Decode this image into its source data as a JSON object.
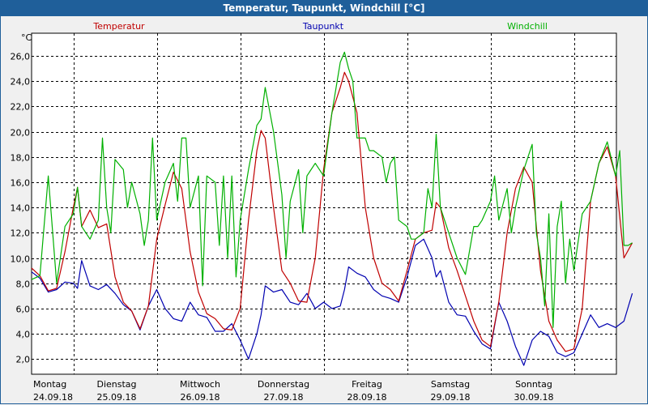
{
  "window": {
    "title": "Temperatur, Taupunkt, Windchill [°C]"
  },
  "chart_data": {
    "type": "line",
    "title": "Temperatur, Taupunkt, Windchill [°C]",
    "ylabel": "°C",
    "ylim": [
      0.8,
      27.8
    ],
    "xlim": [
      0,
      7.0
    ],
    "yticks": [
      "2,0",
      "4,0",
      "6,0",
      "8,0",
      "10,0",
      "12,0",
      "14,0",
      "16,0",
      "18,0",
      "20,0",
      "22,0",
      "24,0",
      "26,0"
    ],
    "ytick_values": [
      2,
      4,
      6,
      8,
      10,
      12,
      14,
      16,
      18,
      20,
      22,
      24,
      26
    ],
    "xticks": [
      {
        "day": "Montag",
        "date": "24.09.18",
        "pos": 0.0
      },
      {
        "day": "Dienstag",
        "date": "25.09.18",
        "pos": 1.0
      },
      {
        "day": "Mittwoch",
        "date": "26.09.18",
        "pos": 2.0
      },
      {
        "day": "Donnerstag",
        "date": "27.09.18",
        "pos": 3.0
      },
      {
        "day": "Freitag",
        "date": "28.09.18",
        "pos": 4.0
      },
      {
        "day": "Samstag",
        "date": "29.09.18",
        "pos": 5.0
      },
      {
        "day": "Sonntag",
        "date": "30.09.18",
        "pos": 6.0
      }
    ],
    "grid": true,
    "series": [
      {
        "name": "Temperatur",
        "color": "#c00000",
        "points": [
          [
            0.0,
            9.2
          ],
          [
            0.1,
            8.6
          ],
          [
            0.2,
            7.4
          ],
          [
            0.3,
            7.6
          ],
          [
            0.4,
            10.5
          ],
          [
            0.5,
            14.0
          ],
          [
            0.55,
            15.6
          ],
          [
            0.6,
            12.5
          ],
          [
            0.7,
            13.8
          ],
          [
            0.8,
            12.4
          ],
          [
            0.9,
            12.7
          ],
          [
            1.0,
            8.5
          ],
          [
            1.1,
            6.5
          ],
          [
            1.2,
            5.8
          ],
          [
            1.3,
            4.4
          ],
          [
            1.4,
            6.2
          ],
          [
            1.5,
            11.5
          ],
          [
            1.6,
            14.2
          ],
          [
            1.7,
            16.8
          ],
          [
            1.8,
            15.5
          ],
          [
            1.9,
            10.5
          ],
          [
            2.0,
            7.3
          ],
          [
            2.1,
            5.6
          ],
          [
            2.2,
            5.2
          ],
          [
            2.3,
            4.4
          ],
          [
            2.4,
            4.3
          ],
          [
            2.5,
            6.0
          ],
          [
            2.6,
            13.0
          ],
          [
            2.7,
            18.5
          ],
          [
            2.75,
            20.1
          ],
          [
            2.8,
            19.5
          ],
          [
            2.9,
            14.0
          ],
          [
            3.0,
            9.0
          ],
          [
            3.1,
            8.0
          ],
          [
            3.2,
            6.6
          ],
          [
            3.3,
            6.5
          ],
          [
            3.4,
            10.0
          ],
          [
            3.5,
            17.0
          ],
          [
            3.6,
            21.5
          ],
          [
            3.7,
            23.5
          ],
          [
            3.75,
            24.7
          ],
          [
            3.8,
            24.0
          ],
          [
            3.9,
            21.5
          ],
          [
            4.0,
            14.0
          ],
          [
            4.1,
            10.0
          ],
          [
            4.2,
            8.0
          ],
          [
            4.3,
            7.5
          ],
          [
            4.4,
            6.6
          ],
          [
            4.5,
            9.0
          ],
          [
            4.6,
            11.5
          ],
          [
            4.7,
            12.0
          ],
          [
            4.8,
            12.2
          ],
          [
            4.85,
            14.4
          ],
          [
            4.9,
            14.0
          ],
          [
            5.0,
            10.8
          ],
          [
            5.1,
            9.0
          ],
          [
            5.2,
            7.0
          ],
          [
            5.3,
            5.0
          ],
          [
            5.4,
            3.5
          ],
          [
            5.5,
            3.0
          ],
          [
            5.6,
            6.5
          ],
          [
            5.7,
            12.0
          ],
          [
            5.8,
            15.5
          ],
          [
            5.9,
            17.2
          ],
          [
            6.0,
            16.0
          ],
          [
            6.1,
            9.0
          ],
          [
            6.2,
            5.0
          ],
          [
            6.3,
            3.5
          ],
          [
            6.4,
            2.6
          ],
          [
            6.5,
            2.8
          ],
          [
            6.6,
            6.0
          ],
          [
            6.7,
            14.5
          ],
          [
            6.8,
            17.5
          ],
          [
            6.9,
            18.8
          ],
          [
            7.0,
            16.5
          ],
          [
            7.1,
            10.0
          ],
          [
            7.2,
            11.2
          ]
        ]
      },
      {
        "name": "Taupunkt",
        "color": "#0000b0",
        "points": [
          [
            0.0,
            8.9
          ],
          [
            0.1,
            8.4
          ],
          [
            0.2,
            7.3
          ],
          [
            0.3,
            7.5
          ],
          [
            0.4,
            8.1
          ],
          [
            0.5,
            8.0
          ],
          [
            0.55,
            7.6
          ],
          [
            0.6,
            9.8
          ],
          [
            0.7,
            7.8
          ],
          [
            0.8,
            7.5
          ],
          [
            0.9,
            7.9
          ],
          [
            1.0,
            7.2
          ],
          [
            1.1,
            6.3
          ],
          [
            1.2,
            5.8
          ],
          [
            1.3,
            4.3
          ],
          [
            1.4,
            6.2
          ],
          [
            1.5,
            7.5
          ],
          [
            1.6,
            6.0
          ],
          [
            1.7,
            5.2
          ],
          [
            1.8,
            5.0
          ],
          [
            1.9,
            6.5
          ],
          [
            2.0,
            5.5
          ],
          [
            2.1,
            5.3
          ],
          [
            2.2,
            4.2
          ],
          [
            2.3,
            4.2
          ],
          [
            2.4,
            4.8
          ],
          [
            2.5,
            3.5
          ],
          [
            2.6,
            2.0
          ],
          [
            2.7,
            4.0
          ],
          [
            2.75,
            5.5
          ],
          [
            2.8,
            7.8
          ],
          [
            2.9,
            7.3
          ],
          [
            3.0,
            7.5
          ],
          [
            3.1,
            6.5
          ],
          [
            3.2,
            6.3
          ],
          [
            3.3,
            7.2
          ],
          [
            3.4,
            6.0
          ],
          [
            3.5,
            6.5
          ],
          [
            3.6,
            6.0
          ],
          [
            3.7,
            6.2
          ],
          [
            3.75,
            7.5
          ],
          [
            3.8,
            9.3
          ],
          [
            3.9,
            8.8
          ],
          [
            4.0,
            8.5
          ],
          [
            4.1,
            7.5
          ],
          [
            4.2,
            7.0
          ],
          [
            4.3,
            6.8
          ],
          [
            4.4,
            6.5
          ],
          [
            4.5,
            8.5
          ],
          [
            4.6,
            11.0
          ],
          [
            4.7,
            11.5
          ],
          [
            4.8,
            10.0
          ],
          [
            4.85,
            8.5
          ],
          [
            4.9,
            9.0
          ],
          [
            5.0,
            6.5
          ],
          [
            5.1,
            5.5
          ],
          [
            5.2,
            5.4
          ],
          [
            5.3,
            4.2
          ],
          [
            5.4,
            3.2
          ],
          [
            5.5,
            2.8
          ],
          [
            5.6,
            6.5
          ],
          [
            5.7,
            5.0
          ],
          [
            5.8,
            3.0
          ],
          [
            5.9,
            1.5
          ],
          [
            6.0,
            3.5
          ],
          [
            6.1,
            4.2
          ],
          [
            6.2,
            3.8
          ],
          [
            6.3,
            2.5
          ],
          [
            6.4,
            2.2
          ],
          [
            6.5,
            2.5
          ],
          [
            6.6,
            4.0
          ],
          [
            6.7,
            5.5
          ],
          [
            6.8,
            4.5
          ],
          [
            6.9,
            4.8
          ],
          [
            7.0,
            4.5
          ],
          [
            7.1,
            5.0
          ],
          [
            7.2,
            7.2
          ]
        ]
      },
      {
        "name": "Windchill",
        "color": "#00b000",
        "points": [
          [
            0.0,
            8.3
          ],
          [
            0.1,
            8.6
          ],
          [
            0.2,
            16.5
          ],
          [
            0.3,
            8.0
          ],
          [
            0.4,
            12.5
          ],
          [
            0.5,
            13.5
          ],
          [
            0.55,
            15.6
          ],
          [
            0.6,
            12.5
          ],
          [
            0.7,
            11.5
          ],
          [
            0.8,
            13.0
          ],
          [
            0.85,
            19.5
          ],
          [
            0.9,
            14.0
          ],
          [
            0.95,
            12.0
          ],
          [
            1.0,
            17.8
          ],
          [
            1.1,
            17.0
          ],
          [
            1.15,
            14.0
          ],
          [
            1.2,
            16.0
          ],
          [
            1.3,
            13.5
          ],
          [
            1.35,
            11.0
          ],
          [
            1.4,
            13.0
          ],
          [
            1.45,
            19.5
          ],
          [
            1.5,
            13.0
          ],
          [
            1.6,
            16.0
          ],
          [
            1.7,
            17.5
          ],
          [
            1.75,
            14.5
          ],
          [
            1.8,
            19.5
          ],
          [
            1.85,
            19.5
          ],
          [
            1.9,
            14.0
          ],
          [
            2.0,
            16.5
          ],
          [
            2.05,
            7.8
          ],
          [
            2.1,
            16.5
          ],
          [
            2.2,
            16.0
          ],
          [
            2.25,
            11.0
          ],
          [
            2.3,
            16.5
          ],
          [
            2.35,
            10.0
          ],
          [
            2.4,
            16.5
          ],
          [
            2.45,
            8.5
          ],
          [
            2.5,
            13.0
          ],
          [
            2.6,
            17.0
          ],
          [
            2.7,
            20.5
          ],
          [
            2.75,
            21.0
          ],
          [
            2.8,
            23.5
          ],
          [
            2.9,
            20.0
          ],
          [
            3.0,
            15.0
          ],
          [
            3.05,
            10.0
          ],
          [
            3.1,
            14.5
          ],
          [
            3.2,
            17.0
          ],
          [
            3.25,
            12.0
          ],
          [
            3.3,
            16.5
          ],
          [
            3.4,
            17.5
          ],
          [
            3.5,
            16.5
          ],
          [
            3.6,
            21.5
          ],
          [
            3.7,
            25.5
          ],
          [
            3.75,
            26.3
          ],
          [
            3.8,
            25.0
          ],
          [
            3.85,
            24.0
          ],
          [
            3.9,
            19.5
          ],
          [
            4.0,
            19.5
          ],
          [
            4.05,
            18.5
          ],
          [
            4.1,
            18.5
          ],
          [
            4.2,
            18.0
          ],
          [
            4.25,
            16.0
          ],
          [
            4.3,
            17.5
          ],
          [
            4.35,
            18.0
          ],
          [
            4.4,
            13.0
          ],
          [
            4.5,
            12.5
          ],
          [
            4.55,
            11.5
          ],
          [
            4.6,
            11.5
          ],
          [
            4.7,
            12.0
          ],
          [
            4.75,
            15.5
          ],
          [
            4.8,
            14.0
          ],
          [
            4.85,
            19.8
          ],
          [
            4.9,
            14.0
          ],
          [
            5.0,
            12.0
          ],
          [
            5.1,
            10.0
          ],
          [
            5.2,
            8.7
          ],
          [
            5.3,
            12.5
          ],
          [
            5.35,
            12.5
          ],
          [
            5.4,
            13.0
          ],
          [
            5.5,
            14.5
          ],
          [
            5.55,
            16.5
          ],
          [
            5.6,
            13.0
          ],
          [
            5.7,
            15.5
          ],
          [
            5.75,
            12.0
          ],
          [
            5.8,
            14.0
          ],
          [
            5.9,
            17.0
          ],
          [
            6.0,
            19.0
          ],
          [
            6.05,
            12.0
          ],
          [
            6.1,
            10.0
          ],
          [
            6.15,
            6.2
          ],
          [
            6.2,
            13.5
          ],
          [
            6.25,
            4.5
          ],
          [
            6.3,
            12.5
          ],
          [
            6.35,
            14.5
          ],
          [
            6.4,
            8.0
          ],
          [
            6.45,
            11.5
          ],
          [
            6.5,
            9.0
          ],
          [
            6.6,
            13.5
          ],
          [
            6.7,
            14.5
          ],
          [
            6.8,
            17.5
          ],
          [
            6.9,
            19.2
          ],
          [
            7.0,
            16.5
          ],
          [
            7.05,
            18.5
          ],
          [
            7.1,
            11.0
          ],
          [
            7.15,
            11.0
          ],
          [
            7.2,
            11.2
          ]
        ]
      }
    ]
  }
}
